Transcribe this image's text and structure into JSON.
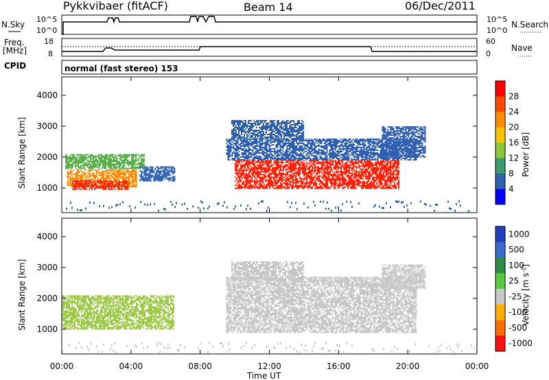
{
  "header": {
    "station": "Pykkvibaer (fitACF)",
    "beam": "Beam 14",
    "date": "06/Dec/2011"
  },
  "status_panels": {
    "nsky": {
      "label": "N.Sky",
      "ticks": [
        "10^5",
        "10^0"
      ]
    },
    "nsearch": {
      "label": "N.Search",
      "ticks": [
        "10^5",
        "10^0"
      ]
    },
    "freq": {
      "label_line1": "Freq.",
      "label_line2": "[MHz]",
      "ticks": [
        "18",
        "8"
      ]
    },
    "nave": {
      "label": "Nave",
      "ticks": [
        "60",
        "0"
      ]
    },
    "cpid": {
      "label": "CPID",
      "text": "normal (fast stereo) 153"
    }
  },
  "chart_data": [
    {
      "type": "heatmap",
      "name": "power-panel",
      "xlabel": "",
      "ylabel": "Slant Range [km]",
      "x_ticks": [
        "00:00",
        "04:00",
        "08:00",
        "12:00",
        "16:00",
        "20:00",
        "00:00"
      ],
      "y_ticks": [
        "1000",
        "2000",
        "3000",
        "4000"
      ],
      "ylim": [
        200,
        4600
      ],
      "colorbar": {
        "label": "Power [dB]",
        "ticks": [
          "28",
          "24",
          "20",
          "16",
          "12",
          "8",
          "4"
        ],
        "colors": [
          "#ff0000",
          "#ff4a00",
          "#ff8c00",
          "#f8c400",
          "#8cc83c",
          "#3c9a6e",
          "#3060b0",
          "#0000ff"
        ]
      },
      "regions": [
        {
          "t": [
            0.2,
            4.8
          ],
          "r": [
            1650,
            2100
          ],
          "level": "green"
        },
        {
          "t": [
            0.3,
            4.3
          ],
          "r": [
            1050,
            1600
          ],
          "level": "orange"
        },
        {
          "t": [
            0.6,
            3.8
          ],
          "r": [
            950,
            1250
          ],
          "level": "red"
        },
        {
          "t": [
            4.5,
            6.5
          ],
          "r": [
            1250,
            1700
          ],
          "level": "blue"
        },
        {
          "t": [
            10.0,
            19.5
          ],
          "r": [
            1000,
            1900
          ],
          "level": "red"
        },
        {
          "t": [
            9.5,
            20.5
          ],
          "r": [
            1900,
            2600
          ],
          "level": "blue"
        },
        {
          "t": [
            9.8,
            14.0
          ],
          "r": [
            2600,
            3200
          ],
          "level": "blue"
        },
        {
          "t": [
            18.5,
            21.0
          ],
          "r": [
            2000,
            3000
          ],
          "level": "blue"
        }
      ]
    },
    {
      "type": "heatmap",
      "name": "velocity-panel",
      "xlabel": "Time UT",
      "ylabel": "Slant Range [km]",
      "x_ticks": [
        "00:00",
        "04:00",
        "08:00",
        "12:00",
        "16:00",
        "20:00",
        "00:00"
      ],
      "y_ticks": [
        "1000",
        "2000",
        "3000",
        "4000"
      ],
      "ylim": [
        200,
        4600
      ],
      "colorbar": {
        "label": "Velocity [m s^-1]",
        "ticks": [
          "1000",
          "500",
          "100",
          "25",
          "-25",
          "-100",
          "-500",
          "-1000"
        ],
        "colors": [
          "#2040c0",
          "#3c6ad0",
          "#2f8c44",
          "#5ac83c",
          "#c8c8c8",
          "#ffb000",
          "#ff7000",
          "#ff1010"
        ]
      },
      "regions": [
        {
          "t": [
            0.0,
            6.5
          ],
          "r": [
            1000,
            2100
          ],
          "level": "green"
        },
        {
          "t": [
            9.5,
            20.5
          ],
          "r": [
            900,
            2700
          ],
          "level": "grey"
        },
        {
          "t": [
            9.8,
            14.0
          ],
          "r": [
            2600,
            3200
          ],
          "level": "grey"
        },
        {
          "t": [
            18.5,
            21.0
          ],
          "r": [
            2300,
            3100
          ],
          "level": "grey"
        }
      ]
    }
  ]
}
